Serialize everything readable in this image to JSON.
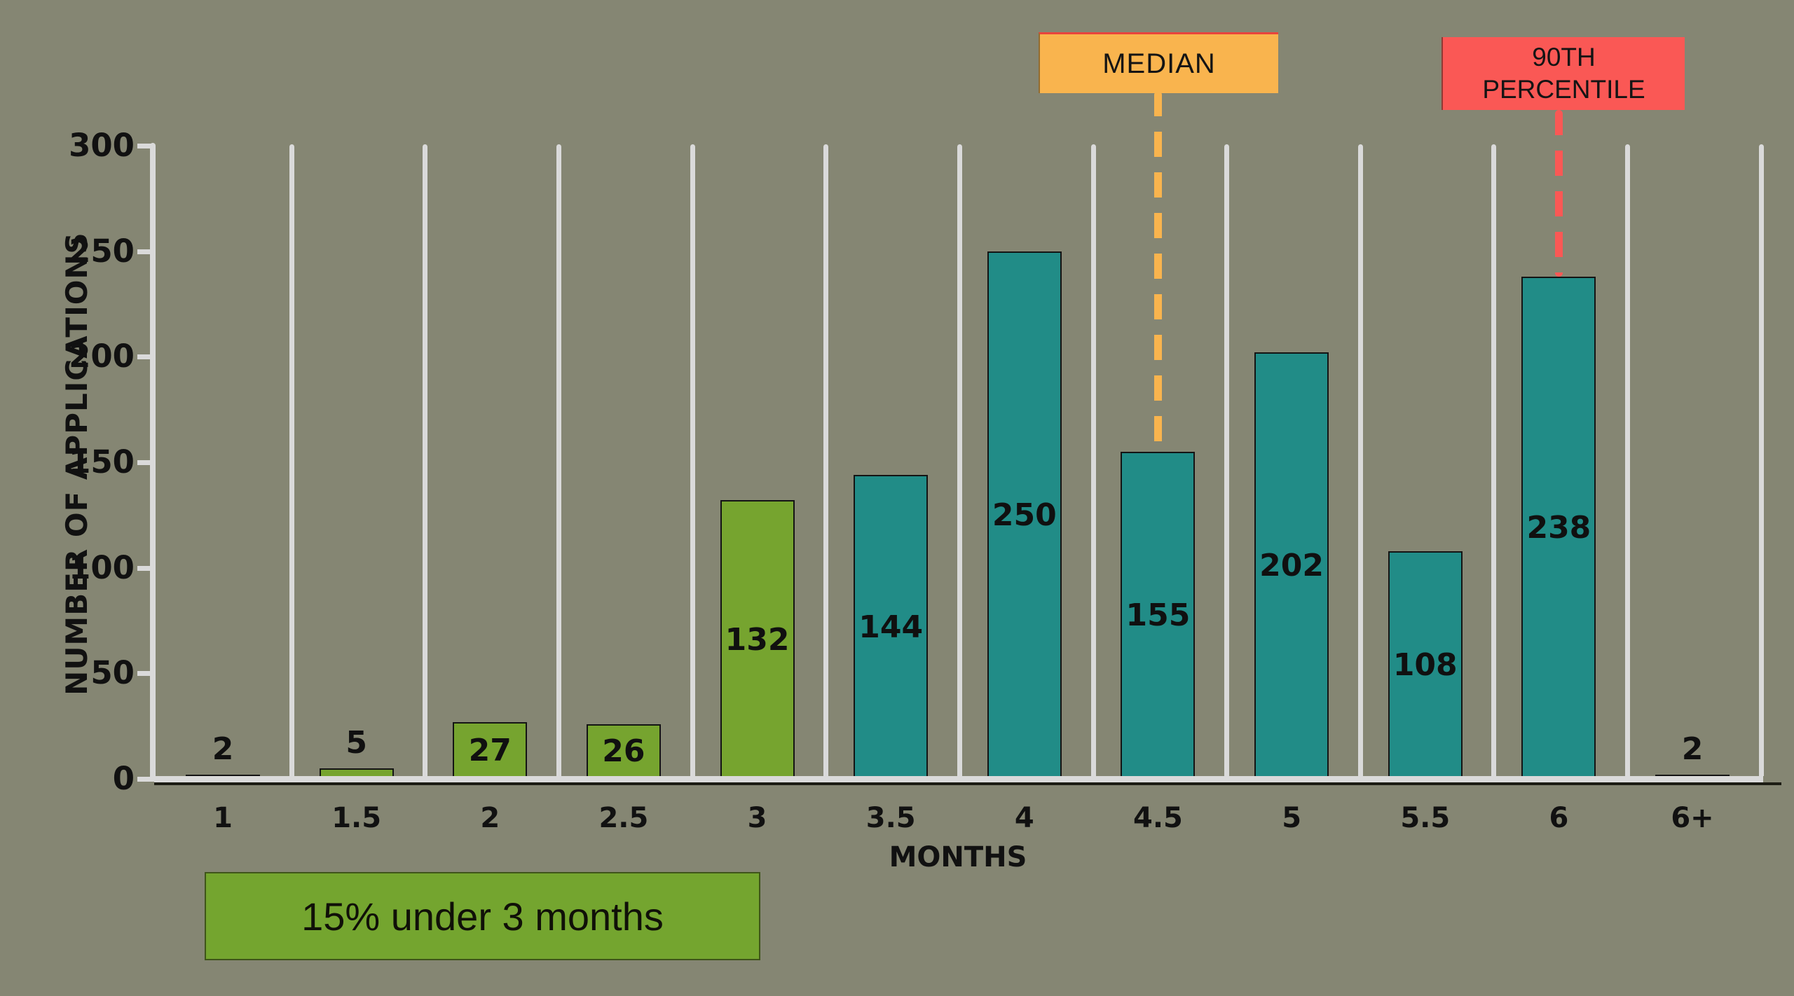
{
  "chart_data": {
    "type": "bar",
    "title": "",
    "categories": [
      "1",
      "1.5",
      "2",
      "2.5",
      "3",
      "3.5",
      "4",
      "4.5",
      "5",
      "5.5",
      "6",
      "6+"
    ],
    "values": [
      2,
      5,
      27,
      26,
      132,
      144,
      250,
      155,
      202,
      108,
      238,
      2
    ],
    "bar_colors": [
      "green",
      "green",
      "green",
      "green",
      "green",
      "teal",
      "teal",
      "teal",
      "teal",
      "teal",
      "teal",
      "crimson"
    ],
    "xlabel": "MONTHS",
    "ylabel": "NUMBER OF APPLICATIONS",
    "ylim": [
      0,
      300
    ],
    "yticks": [
      0,
      50,
      100,
      150,
      200,
      250,
      300
    ],
    "grid": "vertical white separators between categories",
    "legend_position": "none",
    "annotations": [
      {
        "label": "MEDIAN",
        "target_category": "4.5",
        "style": "orange box with dashed line to bar top"
      },
      {
        "label": "90TH PERCENTILE",
        "target_category": "6",
        "style": "red box with dashed line to bar top"
      },
      {
        "label": "15% under 3 months",
        "style": "green callout box below x-axis"
      }
    ]
  },
  "annotations": {
    "median_label": "MEDIAN",
    "percentile_line1": "90TH",
    "percentile_line2": "PERCENTILE",
    "callout_label": "15% under 3 months"
  },
  "axes": {
    "y_title": "NUMBER OF APPLICATIONS",
    "x_title": "MONTHS"
  },
  "colors": {
    "background": "#858673",
    "bar_green": "#76A42F",
    "bar_teal": "#218C87",
    "bar_crimson": "#BC2450",
    "gridline": "#DADADA",
    "axis_line": "#DADADA",
    "median_box": "#F9B44E",
    "percentile_box": "#FA5855",
    "callout_green": "#74A52F",
    "text": "#111111"
  }
}
